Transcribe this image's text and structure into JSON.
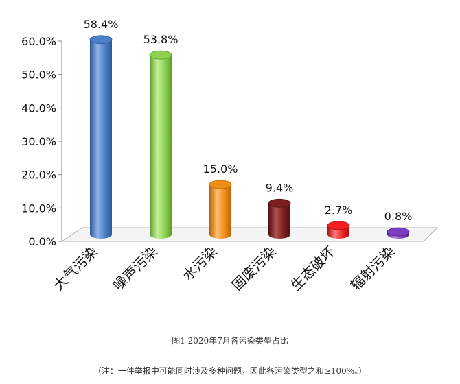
{
  "chart_data": {
    "type": "bar",
    "style": "3d-cylinder",
    "categories": [
      "大气污染",
      "噪声污染",
      "水污染",
      "固废污染",
      "生态破坏",
      "辐射污染"
    ],
    "values": [
      58.4,
      53.8,
      15.0,
      9.4,
      2.7,
      0.8
    ],
    "value_labels": [
      "58.4%",
      "53.8%",
      "15.0%",
      "9.4%",
      "2.7%",
      "0.8%"
    ],
    "y_ticks": [
      "0.0%",
      "10.0%",
      "20.0%",
      "30.0%",
      "40.0%",
      "50.0%",
      "60.0%"
    ],
    "ylim": [
      0,
      60
    ],
    "grid": false,
    "colors": [
      "#4a7fc8",
      "#8fd14f",
      "#f08c18",
      "#7a2020",
      "#f02020",
      "#7a3cc0"
    ],
    "colors_dark": [
      "#2c5a98",
      "#5f9e2c",
      "#b8620a",
      "#4f1212",
      "#b01010",
      "#4f2290"
    ],
    "colors_light": [
      "#8fb3e6",
      "#c6ef9a",
      "#ffc070",
      "#b05050",
      "#ff7a7a",
      "#b28ae8"
    ]
  },
  "caption": "图1    2020年7月各污染类型占比",
  "note": "（注：一件举报中可能同时涉及多种问题，因此各污染类型之和≥100%。）"
}
